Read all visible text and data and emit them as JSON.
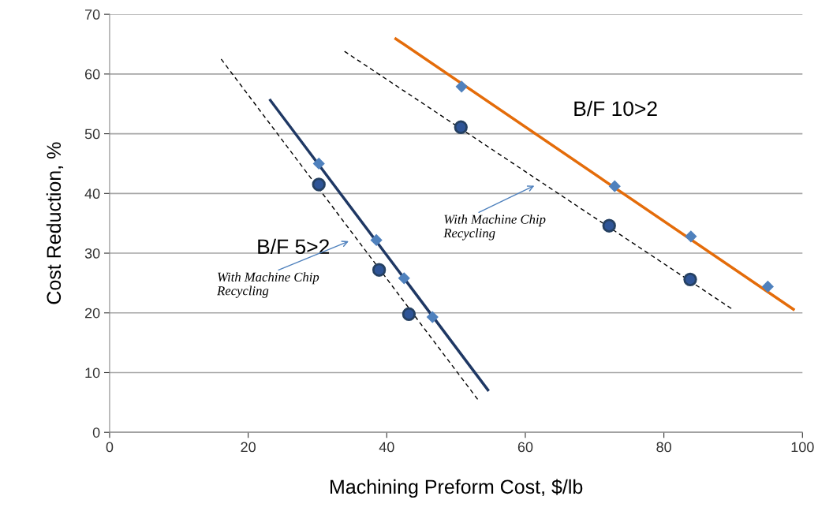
{
  "chart_data": {
    "type": "scatter",
    "xlabel": "Machining Preform Cost, $/lb",
    "ylabel": "Cost Reduction, %",
    "xlim": [
      0,
      100
    ],
    "xticks": [
      0,
      20,
      40,
      60,
      80,
      100
    ],
    "ylim": [
      0,
      70
    ],
    "yticks": [
      0,
      10,
      20,
      30,
      40,
      50,
      60,
      70
    ],
    "grid": "y",
    "series": [
      {
        "marker": "diamond",
        "color": "#4f81bd",
        "x": [
          30.2,
          38.5,
          42.5,
          46.6
        ],
        "values": [
          45.0,
          32.2,
          25.8,
          19.3
        ]
      },
      {
        "marker": "circle",
        "color": "#2f5597",
        "x": [
          30.2,
          38.9,
          43.2
        ],
        "values": [
          41.5,
          27.2,
          19.8
        ]
      },
      {
        "type": "line",
        "name": "B/F 5>2",
        "line_style": "solid",
        "color": "#1f3864",
        "x": [
          23.2,
          54.6
        ],
        "values": [
          55.6,
          7.1
        ]
      },
      {
        "type": "line",
        "line_style": "dashed",
        "color": "#000000",
        "x": [
          16.1,
          53.2
        ],
        "values": [
          62.5,
          5.4
        ]
      },
      {
        "marker": "diamond",
        "color": "#4f81bd",
        "x": [
          50.8,
          72.9,
          83.9,
          95.0
        ],
        "values": [
          57.9,
          41.2,
          32.8,
          24.4
        ]
      },
      {
        "marker": "circle",
        "color": "#2f5597",
        "x": [
          50.7,
          72.1,
          83.8
        ],
        "values": [
          51.1,
          34.6,
          25.6
        ]
      },
      {
        "type": "line",
        "name": "B/F 10>2",
        "line_style": "solid",
        "color": "#e46c0a",
        "x": [
          41.3,
          98.7
        ],
        "values": [
          65.9,
          20.6
        ]
      },
      {
        "type": "line",
        "line_style": "dashed",
        "color": "#000000",
        "x": [
          33.9,
          89.9
        ],
        "values": [
          63.8,
          20.6
        ]
      }
    ],
    "annotations": [
      "With Machine Chip\nRecycling",
      "With Machine Chip\nRecycling"
    ]
  }
}
